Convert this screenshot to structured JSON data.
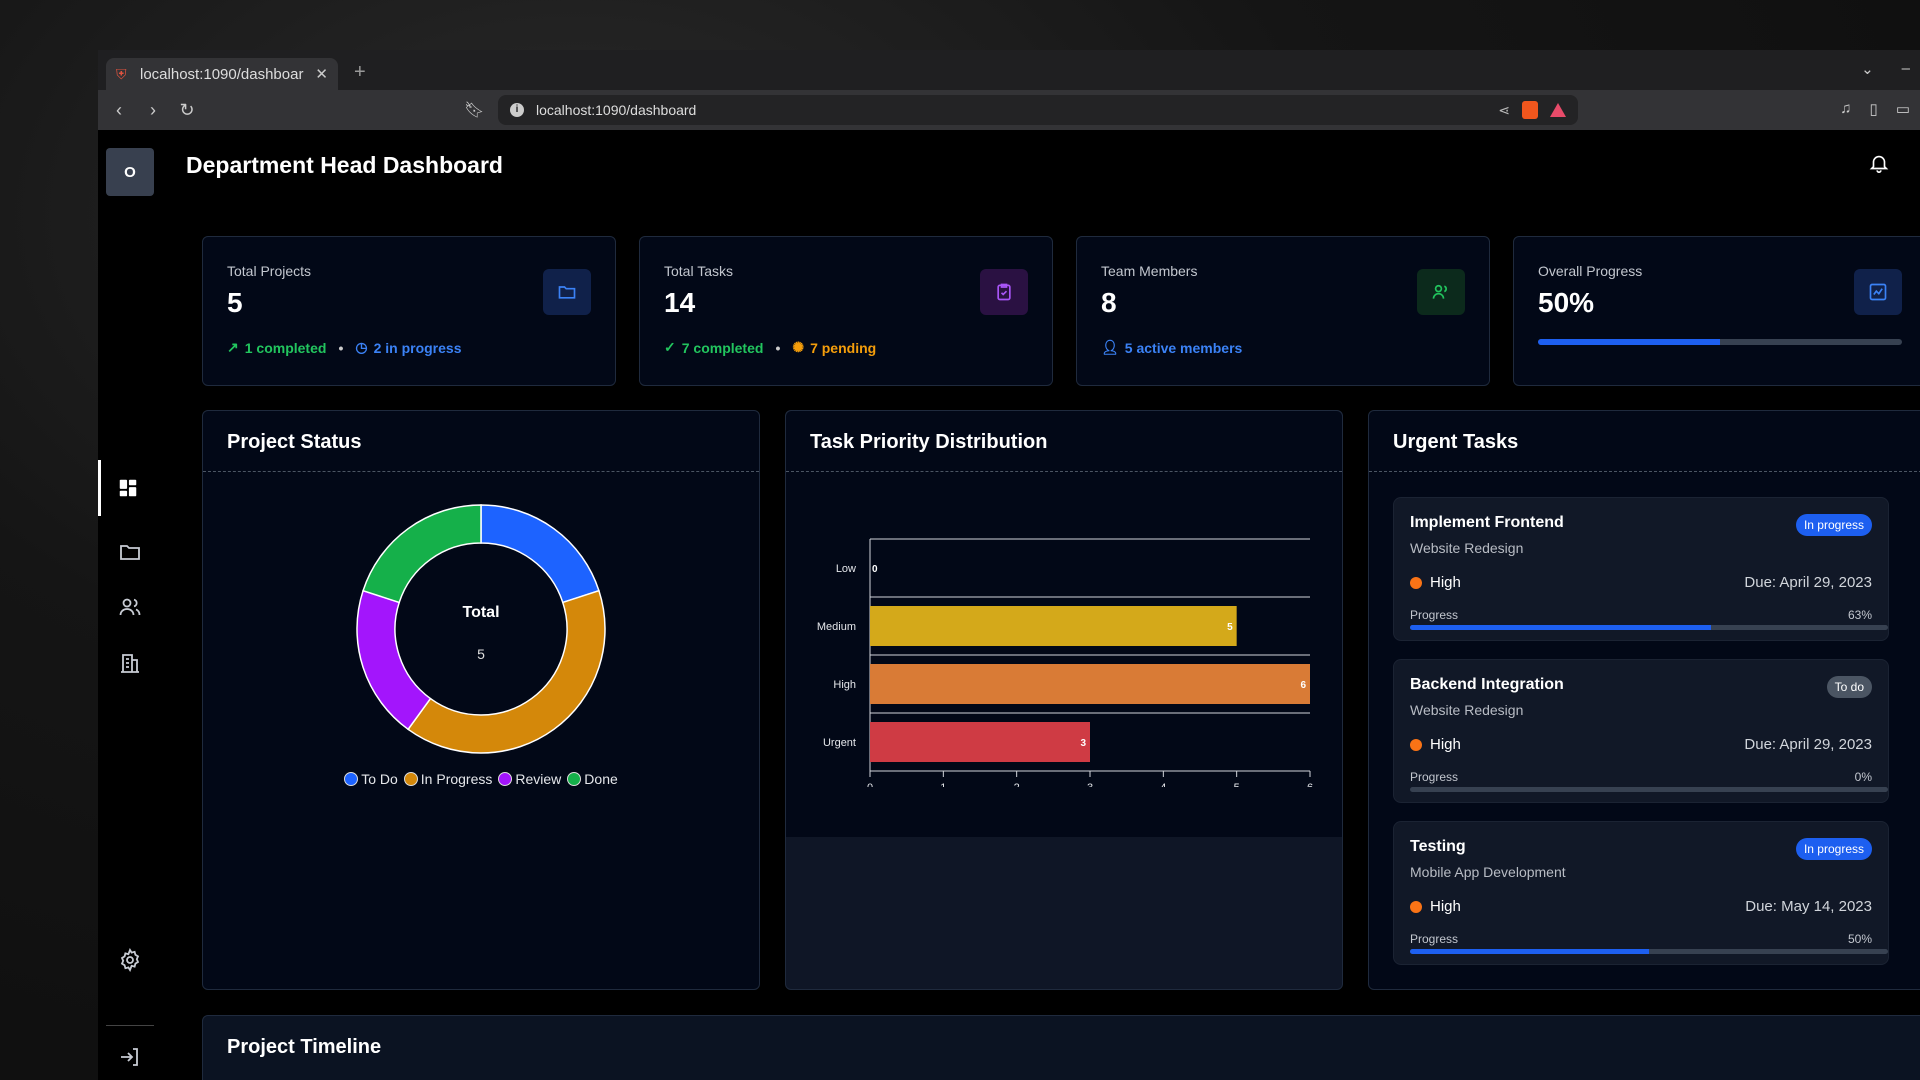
{
  "browser": {
    "tab_title": "localhost:1090/dashboar",
    "url": "localhost:1090/dashboard"
  },
  "app": {
    "logo_letter": "O",
    "page_title": "Department Head Dashboard"
  },
  "stats": {
    "projects": {
      "label": "Total Projects",
      "value": "5",
      "meta1": "1 completed",
      "meta2": "2 in progress"
    },
    "tasks": {
      "label": "Total Tasks",
      "value": "14",
      "meta1": "7 completed",
      "meta2": "7 pending"
    },
    "team": {
      "label": "Team Members",
      "value": "8",
      "meta1": "5 active members"
    },
    "progress": {
      "label": "Overall Progress",
      "value": "50%",
      "fraction": 0.5
    }
  },
  "project_status": {
    "title": "Project Status",
    "center_label": "Total",
    "center_value": "5",
    "legend": [
      "To Do",
      "In Progress",
      "Review",
      "Done"
    ],
    "colors": [
      "#1d63ff",
      "#d4880a",
      "#a315fc",
      "#15b04a"
    ]
  },
  "task_priority": {
    "title": "Task Priority Distribution"
  },
  "chart_data": [
    {
      "type": "pie",
      "title": "Project Status",
      "categories": [
        "To Do",
        "In Progress",
        "Review",
        "Done"
      ],
      "values": [
        1,
        2,
        1,
        1
      ],
      "center_label": "Total",
      "center_value": 5,
      "legend": "bottom"
    },
    {
      "type": "bar",
      "orientation": "horizontal",
      "title": "Task Priority Distribution",
      "categories": [
        "Low",
        "Medium",
        "High",
        "Urgent"
      ],
      "values": [
        0,
        5,
        6,
        3
      ],
      "colors": [
        "#d4a91a",
        "#d4a91a",
        "#d97b36",
        "#cf3b44"
      ],
      "xlim": [
        0,
        6
      ],
      "xticks": [
        "0",
        "1",
        "2",
        "3",
        "4",
        "5",
        "6"
      ],
      "grid": true
    }
  ],
  "urgent": {
    "title": "Urgent Tasks",
    "tasks": [
      {
        "name": "Implement Frontend",
        "project": "Website Redesign",
        "status": "In progress",
        "priority": "High",
        "due": "Due: April 29, 2023",
        "progress_label": "Progress",
        "progress_text": "63%",
        "progress": 0.63
      },
      {
        "name": "Backend Integration",
        "project": "Website Redesign",
        "status": "To do",
        "priority": "High",
        "due": "Due: April 29, 2023",
        "progress_label": "Progress",
        "progress_text": "0%",
        "progress": 0
      },
      {
        "name": "Testing",
        "project": "Mobile App Development",
        "status": "In progress",
        "priority": "High",
        "due": "Due: May 14, 2023",
        "progress_label": "Progress",
        "progress_text": "50%",
        "progress": 0.5
      }
    ]
  },
  "timeline": {
    "title": "Project Timeline"
  }
}
